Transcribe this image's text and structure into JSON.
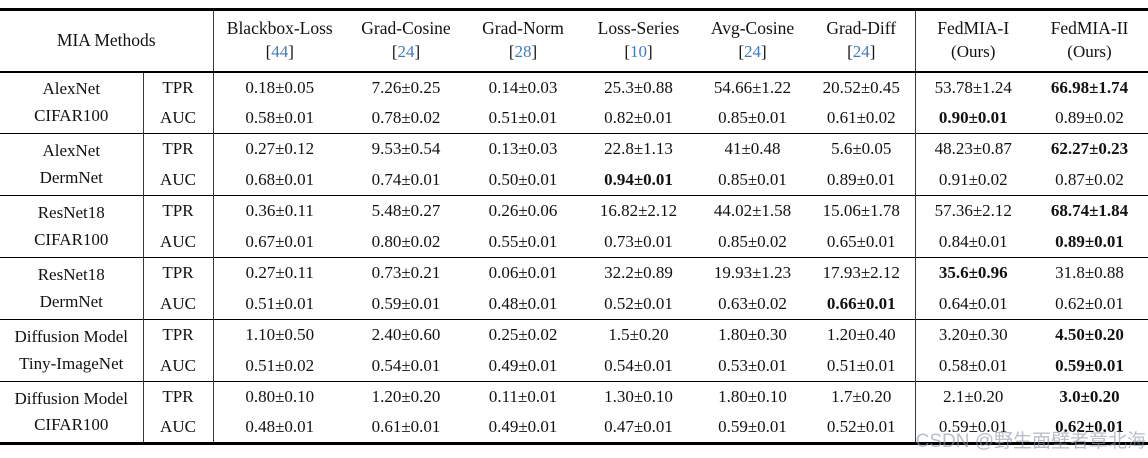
{
  "table": {
    "header": {
      "col0": "MIA Methods",
      "methods": [
        {
          "name": "Blackbox-Loss",
          "ref": "44"
        },
        {
          "name": "Grad-Cosine",
          "ref": "24"
        },
        {
          "name": "Grad-Norm",
          "ref": "28"
        },
        {
          "name": "Loss-Series",
          "ref": "10"
        },
        {
          "name": "Avg-Cosine",
          "ref": "24"
        },
        {
          "name": "Grad-Diff",
          "ref": "24"
        },
        {
          "name": "FedMIA-I",
          "sub": "(Ours)"
        },
        {
          "name": "FedMIA-II",
          "sub": "(Ours)"
        }
      ]
    },
    "metric_labels": [
      "TPR",
      "AUC"
    ],
    "groups": [
      {
        "model": "AlexNet",
        "dataset": "CIFAR100",
        "tpr": [
          {
            "v": "0.18±0.05"
          },
          {
            "v": "7.26±0.25"
          },
          {
            "v": "0.14±0.03"
          },
          {
            "v": "25.3±0.88"
          },
          {
            "v": "54.66±1.22"
          },
          {
            "v": "20.52±0.45"
          },
          {
            "v": "53.78±1.24"
          },
          {
            "v": "66.98±1.74",
            "b": true
          }
        ],
        "auc": [
          {
            "v": "0.58±0.01"
          },
          {
            "v": "0.78±0.02"
          },
          {
            "v": "0.51±0.01"
          },
          {
            "v": "0.82±0.01"
          },
          {
            "v": "0.85±0.01"
          },
          {
            "v": "0.61±0.02"
          },
          {
            "v": "0.90±0.01",
            "b": true
          },
          {
            "v": "0.89±0.02"
          }
        ]
      },
      {
        "model": "AlexNet",
        "dataset": "DermNet",
        "tpr": [
          {
            "v": "0.27±0.12"
          },
          {
            "v": "9.53±0.54"
          },
          {
            "v": "0.13±0.03"
          },
          {
            "v": "22.8±1.13"
          },
          {
            "v": "41±0.48"
          },
          {
            "v": "5.6±0.05"
          },
          {
            "v": "48.23±0.87"
          },
          {
            "v": "62.27±0.23",
            "b": true
          }
        ],
        "auc": [
          {
            "v": "0.68±0.01"
          },
          {
            "v": "0.74±0.01"
          },
          {
            "v": "0.50±0.01"
          },
          {
            "v": "0.94±0.01",
            "b": true
          },
          {
            "v": "0.85±0.01"
          },
          {
            "v": "0.89±0.01"
          },
          {
            "v": "0.91±0.02"
          },
          {
            "v": "0.87±0.02"
          }
        ]
      },
      {
        "model": "ResNet18",
        "dataset": "CIFAR100",
        "tpr": [
          {
            "v": "0.36±0.11"
          },
          {
            "v": "5.48±0.27"
          },
          {
            "v": "0.26±0.06"
          },
          {
            "v": "16.82±2.12"
          },
          {
            "v": "44.02±1.58"
          },
          {
            "v": "15.06±1.78"
          },
          {
            "v": "57.36±2.12"
          },
          {
            "v": "68.74±1.84",
            "b": true
          }
        ],
        "auc": [
          {
            "v": "0.67±0.01"
          },
          {
            "v": "0.80±0.02"
          },
          {
            "v": "0.55±0.01"
          },
          {
            "v": "0.73±0.01"
          },
          {
            "v": "0.85±0.02"
          },
          {
            "v": "0.65±0.01"
          },
          {
            "v": "0.84±0.01"
          },
          {
            "v": "0.89±0.01",
            "b": true
          }
        ]
      },
      {
        "model": "ResNet18",
        "dataset": "DermNet",
        "tpr": [
          {
            "v": "0.27±0.11"
          },
          {
            "v": "0.73±0.21"
          },
          {
            "v": "0.06±0.01"
          },
          {
            "v": "32.2±0.89"
          },
          {
            "v": "19.93±1.23"
          },
          {
            "v": "17.93±2.12"
          },
          {
            "v": "35.6±0.96",
            "b": true
          },
          {
            "v": "31.8±0.88"
          }
        ],
        "auc": [
          {
            "v": "0.51±0.01"
          },
          {
            "v": "0.59±0.01"
          },
          {
            "v": "0.48±0.01"
          },
          {
            "v": "0.52±0.01"
          },
          {
            "v": "0.63±0.02"
          },
          {
            "v": "0.66±0.01",
            "b": true
          },
          {
            "v": "0.64±0.01"
          },
          {
            "v": "0.62±0.01"
          }
        ]
      },
      {
        "model": "Diffusion Model",
        "dataset": "Tiny-ImageNet",
        "tpr": [
          {
            "v": "1.10±0.50"
          },
          {
            "v": "2.40±0.60"
          },
          {
            "v": "0.25±0.02"
          },
          {
            "v": "1.5±0.20"
          },
          {
            "v": "1.80±0.30"
          },
          {
            "v": "1.20±0.40"
          },
          {
            "v": "3.20±0.30"
          },
          {
            "v": "4.50±0.20",
            "b": true
          }
        ],
        "auc": [
          {
            "v": "0.51±0.02"
          },
          {
            "v": "0.54±0.01"
          },
          {
            "v": "0.49±0.01"
          },
          {
            "v": "0.54±0.01"
          },
          {
            "v": "0.53±0.01"
          },
          {
            "v": "0.51±0.01"
          },
          {
            "v": "0.58±0.01"
          },
          {
            "v": "0.59±0.01",
            "b": true
          }
        ]
      },
      {
        "model": "Diffusion Model",
        "dataset": "CIFAR100",
        "tpr": [
          {
            "v": "0.80±0.10"
          },
          {
            "v": "1.20±0.20"
          },
          {
            "v": "0.11±0.01"
          },
          {
            "v": "1.30±0.10"
          },
          {
            "v": "1.80±0.10"
          },
          {
            "v": "1.7±0.20"
          },
          {
            "v": "2.1±0.20"
          },
          {
            "v": "3.0±0.20",
            "b": true
          }
        ],
        "auc": [
          {
            "v": "0.48±0.01"
          },
          {
            "v": "0.61±0.01"
          },
          {
            "v": "0.49±0.01"
          },
          {
            "v": "0.47±0.01"
          },
          {
            "v": "0.59±0.01"
          },
          {
            "v": "0.52±0.01"
          },
          {
            "v": "0.59±0.01"
          },
          {
            "v": "0.62±0.01",
            "b": true
          }
        ]
      }
    ]
  },
  "watermark": "CSDN @野生面壁者章北海",
  "colors": {
    "citation_blue": "#3E7DBF",
    "rule_black": "#000000",
    "watermark_gray": "#8e99a8"
  }
}
